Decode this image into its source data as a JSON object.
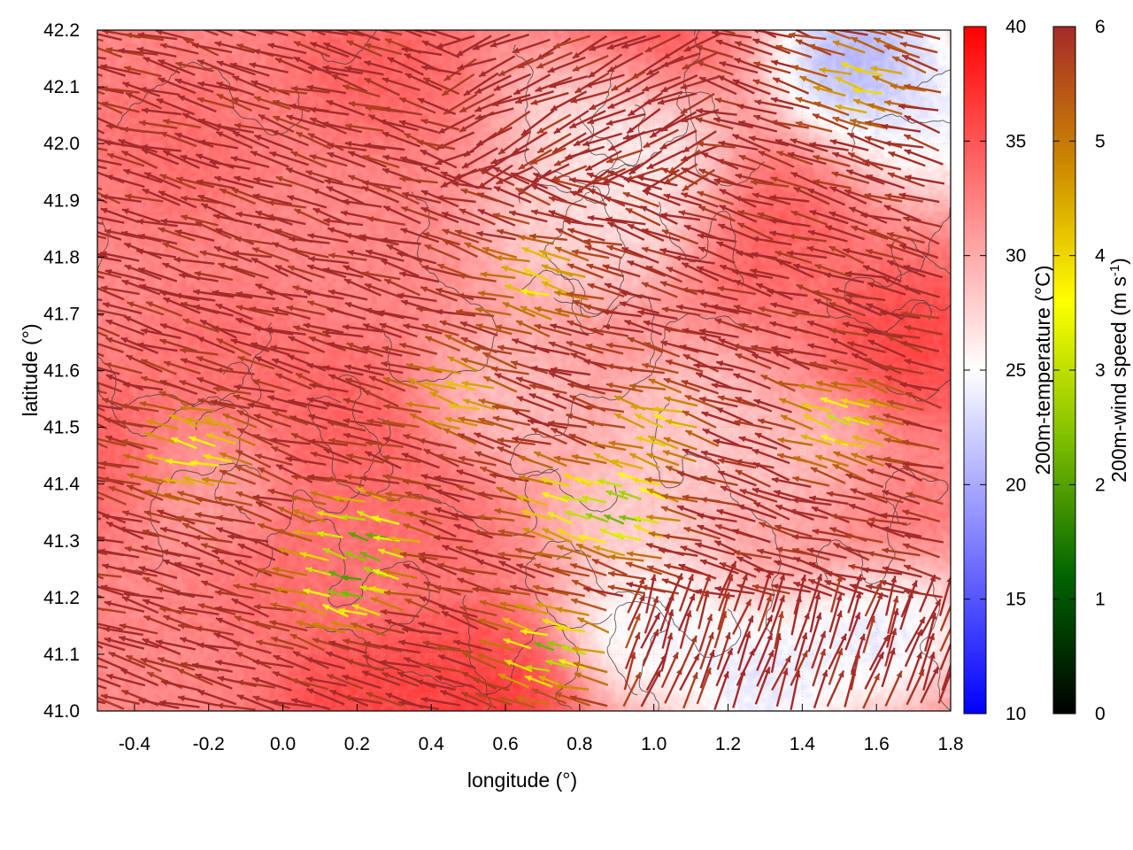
{
  "chart_data": {
    "type": "heatmap",
    "title": "",
    "xlabel": "longitude (°)",
    "ylabel": "latitude (°)",
    "xlim": [
      -0.5,
      1.8
    ],
    "ylim": [
      41.0,
      42.2
    ],
    "x_ticks": [
      "-0.4",
      "-0.2",
      "0.0",
      "0.2",
      "0.4",
      "0.6",
      "0.8",
      "1.0",
      "1.2",
      "1.4",
      "1.6",
      "1.8"
    ],
    "x_tick_values": [
      -0.4,
      -0.2,
      0.0,
      0.2,
      0.4,
      0.6,
      0.8,
      1.0,
      1.2,
      1.4,
      1.6,
      1.8
    ],
    "y_ticks": [
      "41.0",
      "41.1",
      "41.2",
      "41.3",
      "41.4",
      "41.5",
      "41.6",
      "41.7",
      "41.8",
      "41.9",
      "42.0",
      "42.1",
      "42.2"
    ],
    "y_tick_values": [
      41.0,
      41.1,
      41.2,
      41.3,
      41.4,
      41.5,
      41.6,
      41.7,
      41.8,
      41.9,
      42.0,
      42.1,
      42.2
    ],
    "grid": true,
    "temperature_colorbar": {
      "label": "200m-temperature (°C)",
      "range": [
        10,
        40
      ],
      "ticks": [
        "10",
        "15",
        "20",
        "25",
        "30",
        "35",
        "40"
      ],
      "tick_values": [
        10,
        15,
        20,
        25,
        30,
        35,
        40
      ],
      "colors": [
        "#0000ff",
        "#ffffff",
        "#ff0000"
      ]
    },
    "wind_colorbar": {
      "label_main": "200m-wind speed (m s",
      "label_sup": "-1",
      "label_end": ")",
      "range": [
        0,
        6
      ],
      "ticks": [
        "0",
        "1",
        "2",
        "3",
        "4",
        "5",
        "6"
      ],
      "tick_values": [
        0,
        1,
        2,
        3,
        4,
        5,
        6
      ],
      "colors": [
        "#000000",
        "#006400",
        "#7fbf00",
        "#ffff00",
        "#cc8800",
        "#a52a2a"
      ]
    },
    "temperature_field": {
      "background_c": 32,
      "warm_spots": [
        {
          "lon": -0.5,
          "lat": 41.45,
          "t": 35
        },
        {
          "lon": -0.15,
          "lat": 41.6,
          "t": 34
        },
        {
          "lon": 0.15,
          "lat": 41.5,
          "t": 35
        },
        {
          "lon": 0.0,
          "lat": 41.25,
          "t": 34
        },
        {
          "lon": 0.45,
          "lat": 41.05,
          "t": 36
        },
        {
          "lon": 0.2,
          "lat": 41.0,
          "t": 37
        },
        {
          "lon": 0.55,
          "lat": 41.0,
          "t": 38
        },
        {
          "lon": 1.3,
          "lat": 41.85,
          "t": 35
        },
        {
          "lon": 1.7,
          "lat": 41.65,
          "t": 37
        },
        {
          "lon": 1.55,
          "lat": 41.35,
          "t": 35
        },
        {
          "lon": 0.25,
          "lat": 42.15,
          "t": 35
        },
        {
          "lon": 0.95,
          "lat": 42.2,
          "t": 36
        },
        {
          "lon": 0.35,
          "lat": 41.35,
          "t": 34
        },
        {
          "lon": -0.3,
          "lat": 42.0,
          "t": 34
        }
      ],
      "cool_spots": [
        {
          "lon": 0.75,
          "lat": 41.85,
          "t": 27
        },
        {
          "lon": 0.62,
          "lat": 41.55,
          "t": 28
        },
        {
          "lon": 0.9,
          "lat": 41.9,
          "t": 26
        },
        {
          "lon": 0.85,
          "lat": 42.05,
          "t": 25
        },
        {
          "lon": 1.0,
          "lat": 41.95,
          "t": 25
        },
        {
          "lon": 1.1,
          "lat": 41.5,
          "t": 27
        },
        {
          "lon": 1.0,
          "lat": 41.15,
          "t": 22
        },
        {
          "lon": 1.3,
          "lat": 41.05,
          "t": 21
        },
        {
          "lon": 1.6,
          "lat": 41.15,
          "t": 21
        },
        {
          "lon": 1.55,
          "lat": 42.15,
          "t": 17
        },
        {
          "lon": 1.75,
          "lat": 42.05,
          "t": 22
        },
        {
          "lon": 0.95,
          "lat": 41.35,
          "t": 27
        },
        {
          "lon": 1.45,
          "lat": 41.4,
          "t": 26
        },
        {
          "lon": -0.2,
          "lat": 41.4,
          "t": 30
        }
      ]
    },
    "wind_field": {
      "speed_max": 6,
      "low_speed_zones": [
        {
          "lon": 0.72,
          "lat": 41.75,
          "s": 3.8
        },
        {
          "lon": 0.5,
          "lat": 41.55,
          "s": 4.2
        },
        {
          "lon": -0.2,
          "lat": 41.45,
          "s": 3.2
        },
        {
          "lon": 0.25,
          "lat": 41.3,
          "s": 2.2
        },
        {
          "lon": 0.8,
          "lat": 41.35,
          "s": 3.5
        },
        {
          "lon": 0.95,
          "lat": 41.35,
          "s": 2.0
        },
        {
          "lon": 0.75,
          "lat": 41.1,
          "s": 2.2
        },
        {
          "lon": 1.55,
          "lat": 41.5,
          "s": 3.2
        },
        {
          "lon": 1.6,
          "lat": 42.1,
          "s": 4.0
        },
        {
          "lon": 1.05,
          "lat": 41.5,
          "s": 4.0
        },
        {
          "lon": 0.2,
          "lat": 41.22,
          "s": 2.0
        }
      ]
    }
  }
}
